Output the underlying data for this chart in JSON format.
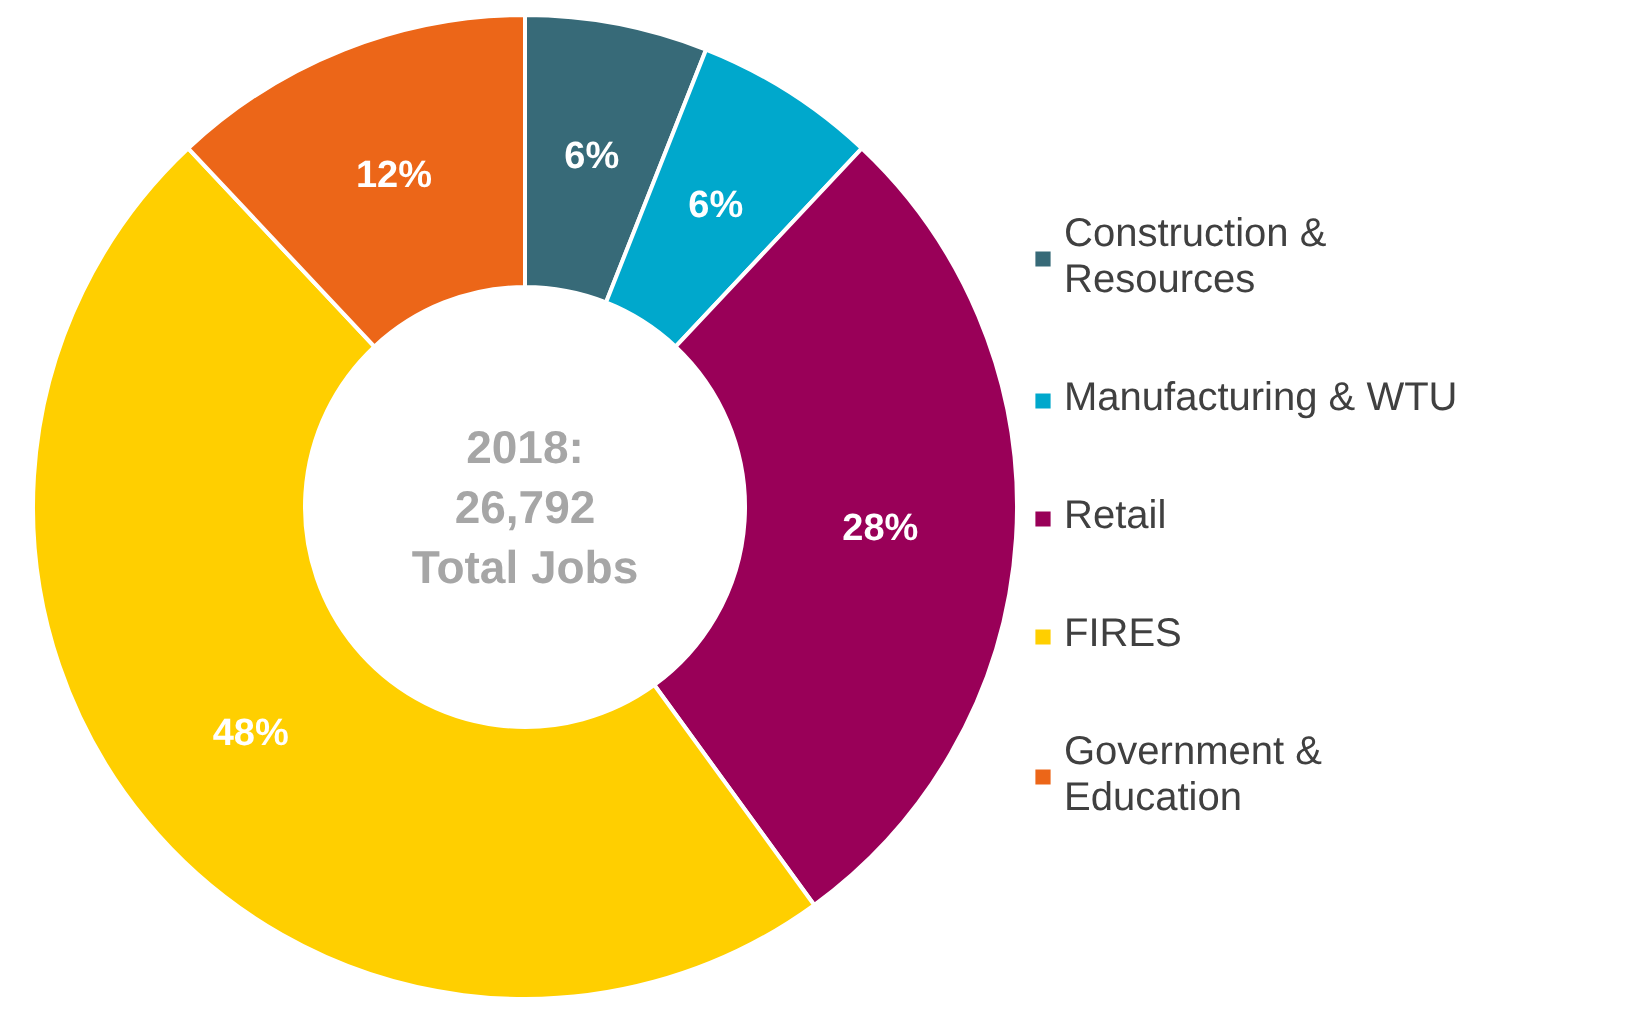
{
  "chart_data": {
    "type": "donut",
    "title": "2018:\n26,792\nTotal Jobs",
    "categories": [
      "Construction & Resources",
      "Manufacturing & WTU",
      "Retail",
      "FIRES",
      "Government & Education"
    ],
    "values": [
      6,
      6,
      28,
      48,
      12
    ],
    "colors": [
      "#376a78",
      "#00a8cc",
      "#990058",
      "#ffcf00",
      "#ec6618"
    ],
    "value_labels": [
      "6%",
      "6%",
      "28%",
      "48%",
      "12%"
    ],
    "legend": "right"
  }
}
